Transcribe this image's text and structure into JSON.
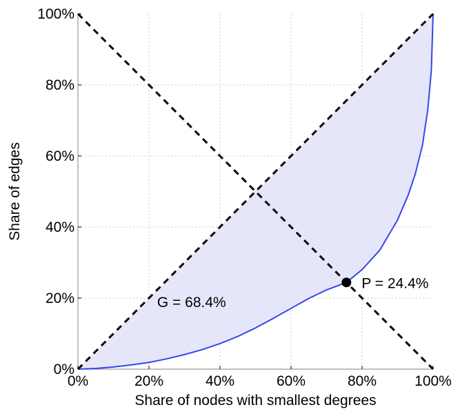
{
  "chart_data": {
    "type": "line",
    "title": "",
    "xlabel": "Share of nodes with smallest degrees",
    "ylabel": "Share of edges",
    "xlim": [
      0,
      100
    ],
    "ylim": [
      0,
      100
    ],
    "x_ticks": [
      0,
      20,
      40,
      60,
      80,
      100
    ],
    "y_ticks": [
      0,
      20,
      40,
      60,
      80,
      100
    ],
    "x_tick_labels": [
      "0%",
      "20%",
      "40%",
      "60%",
      "80%",
      "100%"
    ],
    "y_tick_labels": [
      "0%",
      "20%",
      "40%",
      "60%",
      "80%",
      "100%"
    ],
    "grid": true,
    "series": [
      {
        "name": "Lorenz curve",
        "color": "#3344ee",
        "fill": "#e6e6fb",
        "x": [
          0,
          5,
          10,
          15,
          20,
          25,
          30,
          35,
          40,
          45,
          50,
          55,
          60,
          65,
          70,
          75.6,
          80,
          85,
          90,
          93,
          95,
          97,
          98.5,
          99.5,
          100
        ],
        "y": [
          0,
          0.2,
          0.6,
          1.2,
          1.9,
          2.9,
          4.1,
          5.5,
          7.2,
          9.2,
          11.6,
          14.3,
          17.1,
          19.9,
          22.3,
          24.4,
          28,
          33.5,
          42,
          49,
          55,
          63,
          73,
          84,
          100
        ]
      },
      {
        "name": "Equality line",
        "color": "#000000",
        "style": "dashed",
        "x": [
          0,
          100
        ],
        "y": [
          0,
          100
        ]
      },
      {
        "name": "Anti-diagonal",
        "color": "#000000",
        "style": "dashed",
        "x": [
          0,
          100
        ],
        "y": [
          100,
          0
        ]
      }
    ],
    "points": [
      {
        "name": "P",
        "x": 75.6,
        "y": 24.4,
        "label": "P = 24.4%"
      }
    ],
    "annotations": [
      {
        "text": "G = 68.4%",
        "x": 32,
        "y": 19
      }
    ]
  }
}
